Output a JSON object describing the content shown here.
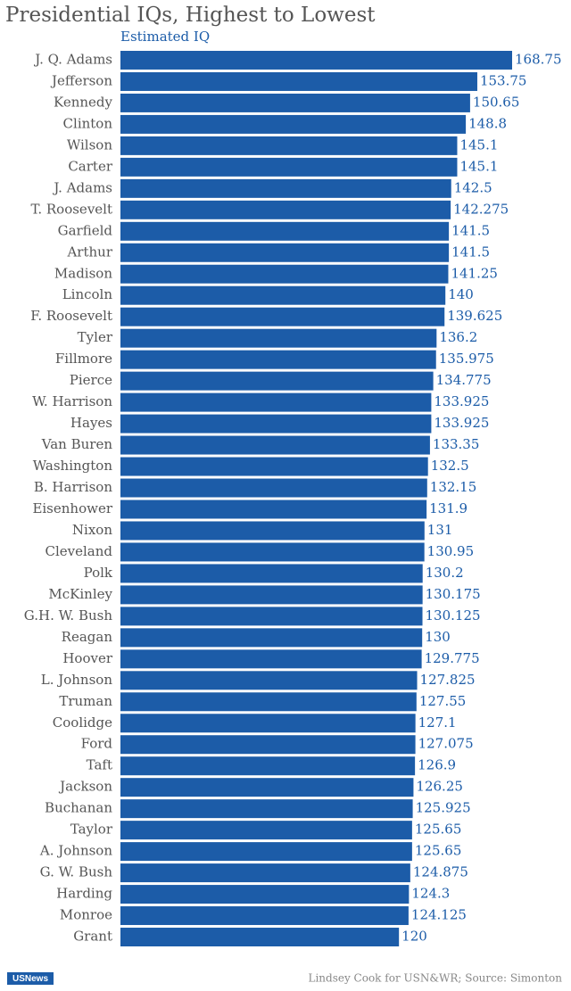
{
  "chart_data": {
    "type": "bar",
    "orientation": "horizontal",
    "title": "Presidential IQs, Highest to Lowest",
    "value_label": "Estimated IQ",
    "color": "#1c5ca8",
    "categories": [
      "J. Q. Adams",
      "Jefferson",
      "Kennedy",
      "Clinton",
      "Wilson",
      "Carter",
      "J. Adams",
      "T. Roosevelt",
      "Garfield",
      "Arthur",
      "Madison",
      "Lincoln",
      "F. Roosevelt",
      "Tyler",
      "Fillmore",
      "Pierce",
      "W. Harrison",
      "Hayes",
      "Van Buren",
      "Washington",
      "B. Harrison",
      "Eisenhower",
      "Nixon",
      "Cleveland",
      "Polk",
      "McKinley",
      "G.H. W. Bush",
      "Reagan",
      "Hoover",
      "L. Johnson",
      "Truman",
      "Coolidge",
      "Ford",
      "Taft",
      "Jackson",
      "Buchanan",
      "Taylor",
      "A. Johnson",
      "G. W. Bush",
      "Harding",
      "Monroe",
      "Grant"
    ],
    "values": [
      168.75,
      153.75,
      150.65,
      148.8,
      145.1,
      145.1,
      142.5,
      142.275,
      141.5,
      141.5,
      141.25,
      140,
      139.625,
      136.2,
      135.975,
      134.775,
      133.925,
      133.925,
      133.35,
      132.5,
      132.15,
      131.9,
      131,
      130.95,
      130.2,
      130.175,
      130.125,
      130,
      129.775,
      127.825,
      127.55,
      127.1,
      127.075,
      126.9,
      126.25,
      125.925,
      125.65,
      125.65,
      124.875,
      124.3,
      124.125,
      120
    ]
  },
  "footer": {
    "logo": "USNews",
    "source": "Lindsey Cook for USN&WR; Source: Simonton"
  }
}
